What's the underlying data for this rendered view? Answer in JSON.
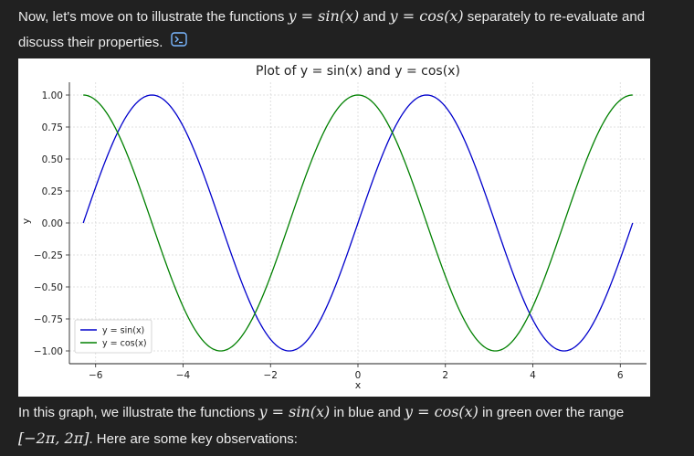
{
  "intro": {
    "t1": "Now, let's move on to illustrate the functions ",
    "m1": "y = sin(x)",
    "t2": " and ",
    "m2": "y = cos(x)",
    "t3": " separately to re-evaluate and discuss their properties.",
    "code_icon": "code-icon"
  },
  "chart_data": {
    "type": "line",
    "title": "Plot of y = sin(x) and y = cos(x)",
    "xlabel": "x",
    "ylabel": "y",
    "xlim": [
      -6.6,
      6.6
    ],
    "ylim": [
      -1.1,
      1.1
    ],
    "xticks": [
      -6,
      -4,
      -2,
      0,
      2,
      4,
      6
    ],
    "xtick_labels": [
      "−6",
      "−4",
      "−2",
      "0",
      "2",
      "4",
      "6"
    ],
    "yticks": [
      1.0,
      0.75,
      0.5,
      0.25,
      0.0,
      -0.25,
      -0.5,
      -0.75,
      -1.0
    ],
    "ytick_labels": [
      "1.00",
      "0.75",
      "0.50",
      "0.25",
      "0.00",
      "−0.25",
      "−0.50",
      "−0.75",
      "−1.00"
    ],
    "grid": true,
    "legend": "bottom-left",
    "series": [
      {
        "name": "y = sin(x)",
        "function": "sin",
        "domain": [
          -6.2832,
          6.2832
        ],
        "color": "#0000cc"
      },
      {
        "name": "y = cos(x)",
        "function": "cos",
        "domain": [
          -6.2832,
          6.2832
        ],
        "color": "#008000"
      }
    ]
  },
  "outro": {
    "t1": "In this graph, we illustrate the functions ",
    "m1": "y = sin(x)",
    "t2": " in blue and ",
    "m2": "y = cos(x)",
    "t3": " in green over the range ",
    "m3": "[−2π, 2π]",
    "t4": ". Here are some key observations:"
  }
}
